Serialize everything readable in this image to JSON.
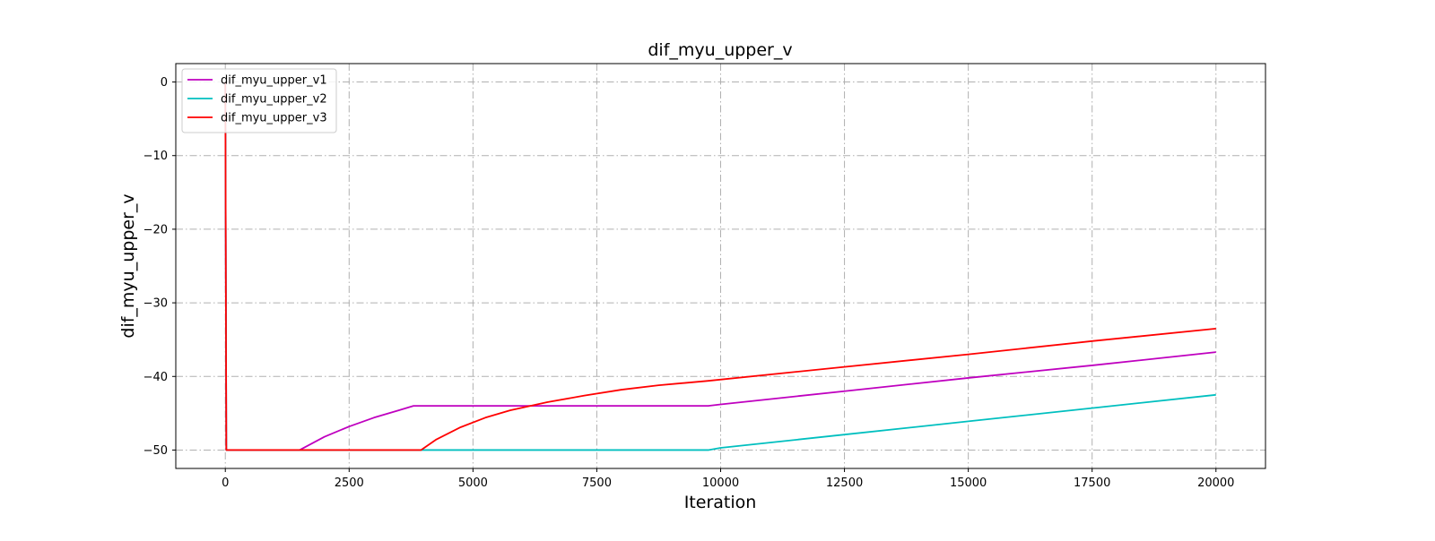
{
  "chart_data": {
    "type": "line",
    "title": "dif_myu_upper_v",
    "xlabel": "Iteration",
    "ylabel": "dif_myu_upper_v",
    "xlim": [
      -1000,
      21000
    ],
    "ylim": [
      -52.5,
      2.5
    ],
    "xticks": [
      0,
      2500,
      5000,
      7500,
      10000,
      12500,
      15000,
      17500,
      20000
    ],
    "xtick_labels": [
      "0",
      "2500",
      "5000",
      "7500",
      "10000",
      "12500",
      "15000",
      "17500",
      "20000"
    ],
    "yticks": [
      0,
      -10,
      -20,
      -30,
      -40,
      -50
    ],
    "ytick_labels": [
      "0",
      "−10",
      "−20",
      "−30",
      "−40",
      "−50"
    ],
    "grid": true,
    "legend_position": "top-left",
    "series": [
      {
        "name": "dif_myu_upper_v1",
        "color": "#bf00bf",
        "x": [
          0,
          20,
          1500,
          2000,
          2500,
          3000,
          3500,
          3800,
          9750,
          10000,
          12500,
          15000,
          17500,
          20000
        ],
        "y": [
          0,
          -50,
          -50,
          -48.2,
          -46.8,
          -45.6,
          -44.6,
          -44,
          -44,
          -43.8,
          -42.0,
          -40.2,
          -38.5,
          -36.7
        ]
      },
      {
        "name": "dif_myu_upper_v2",
        "color": "#00bfbf",
        "x": [
          0,
          20,
          9750,
          10000,
          12500,
          15000,
          17500,
          20000
        ],
        "y": [
          0,
          -50,
          -50,
          -49.7,
          -47.9,
          -46.1,
          -44.3,
          -42.5
        ]
      },
      {
        "name": "dif_myu_upper_v3",
        "color": "#ff0000",
        "x": [
          0,
          20,
          3950,
          4250,
          4750,
          5250,
          5750,
          6500,
          7250,
          8000,
          8750,
          9750,
          12500,
          15000,
          17500,
          20000
        ],
        "y": [
          0,
          -50,
          -50,
          -48.6,
          -46.9,
          -45.6,
          -44.6,
          -43.5,
          -42.6,
          -41.8,
          -41.2,
          -40.6,
          -38.7,
          -37.0,
          -35.2,
          -33.5
        ]
      }
    ]
  }
}
